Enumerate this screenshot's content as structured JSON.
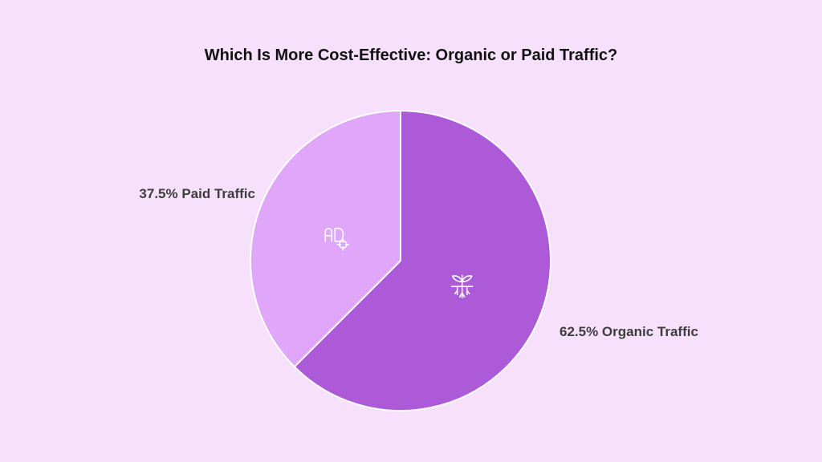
{
  "chart_data": {
    "type": "pie",
    "title": "Which Is More Cost-Effective: Organic or Paid Traffic?",
    "slices": [
      {
        "label": "62.5% Organic Traffic",
        "value": 62.5,
        "color": "#ad5ad9",
        "icon": "sprout-roots-icon"
      },
      {
        "label": "37.5% Paid Traffic",
        "value": 37.5,
        "color": "#e0a6f9",
        "icon": "ad-target-icon"
      }
    ],
    "start_angle": "12 o'clock",
    "direction": "clockwise",
    "slice_border_color": "#ffffff"
  }
}
